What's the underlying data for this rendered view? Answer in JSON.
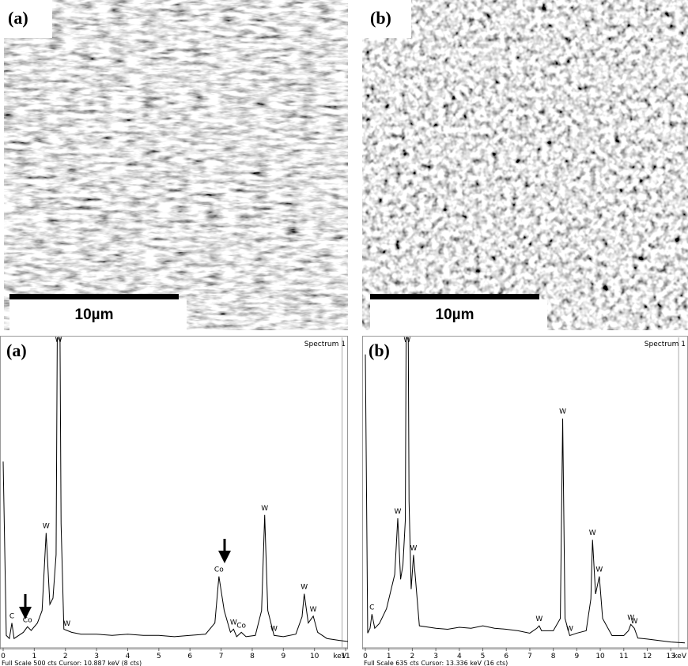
{
  "images": [
    {
      "label": "(a)",
      "scale_bar": "10µm"
    },
    {
      "label": "(b)",
      "scale_bar": "10µm"
    }
  ],
  "chart_data": [
    {
      "type": "line",
      "panel_label": "(a)",
      "title": "Spectrum 1",
      "x_label": "keV",
      "footer": "Full Scale 500 cts  Cursor: 10.887 keV (8 cts)",
      "cursor": 10.887,
      "color": "#000000",
      "xlim": [
        0,
        11.1
      ],
      "ylim": [
        0,
        500
      ],
      "xticks": [
        0,
        1,
        2,
        3,
        4,
        5,
        6,
        7,
        8,
        9,
        10,
        11
      ],
      "x": [
        0,
        0.1,
        0.2,
        0.28,
        0.35,
        0.5,
        0.65,
        0.78,
        0.9,
        1.1,
        1.25,
        1.38,
        1.5,
        1.6,
        1.7,
        1.78,
        1.86,
        1.95,
        2.05,
        2.2,
        2.5,
        3,
        3.5,
        4,
        4.5,
        5,
        5.5,
        6,
        6.5,
        6.8,
        6.93,
        7.1,
        7.3,
        7.4,
        7.5,
        7.65,
        7.8,
        8.1,
        8.3,
        8.4,
        8.5,
        8.7,
        9,
        9.4,
        9.6,
        9.67,
        9.8,
        9.96,
        10.1,
        10.4,
        10.8,
        11.1
      ],
      "values": [
        300,
        20,
        15,
        40,
        15,
        20,
        25,
        34,
        28,
        40,
        60,
        185,
        70,
        80,
        150,
        900,
        200,
        30,
        28,
        25,
        22,
        22,
        20,
        22,
        20,
        20,
        18,
        20,
        22,
        40,
        115,
        60,
        25,
        30,
        18,
        25,
        18,
        20,
        60,
        214,
        60,
        20,
        18,
        22,
        50,
        87,
        40,
        51,
        25,
        15,
        12,
        10
      ],
      "annotations": [
        {
          "text": "C",
          "x": 0.28
        },
        {
          "text": "Co",
          "x": 0.78
        },
        {
          "text": "W",
          "x": 1.38
        },
        {
          "text": "W",
          "x": 1.78
        },
        {
          "text": "W",
          "x": 2.05
        },
        {
          "text": "Co",
          "x": 6.93
        },
        {
          "text": "W",
          "x": 7.4
        },
        {
          "text": "Co",
          "x": 7.65
        },
        {
          "text": "W",
          "x": 8.4
        },
        {
          "text": "W",
          "x": 8.7
        },
        {
          "text": "W",
          "x": 9.67
        },
        {
          "text": "W",
          "x": 9.96
        }
      ]
    },
    {
      "type": "line",
      "panel_label": "(b)",
      "title": "Spectrum 1",
      "x_label": "keV",
      "footer": "Full Scale 635 cts  Cursor: 13.336 keV (16 cts)",
      "cursor": 13.336,
      "color": "#000000",
      "xlim": [
        0,
        13.6
      ],
      "ylim": [
        0,
        635
      ],
      "xticks": [
        0,
        1,
        2,
        3,
        4,
        5,
        6,
        7,
        8,
        9,
        10,
        11,
        12,
        13
      ],
      "x": [
        0,
        0.1,
        0.2,
        0.28,
        0.4,
        0.6,
        0.9,
        1.1,
        1.25,
        1.38,
        1.5,
        1.6,
        1.7,
        1.78,
        1.86,
        1.95,
        2.05,
        2.3,
        3,
        3.5,
        4,
        4.5,
        5,
        5.5,
        6,
        6.5,
        7,
        7.3,
        7.4,
        7.5,
        8,
        8.3,
        8.4,
        8.5,
        8.7,
        9,
        9.4,
        9.6,
        9.67,
        9.8,
        9.96,
        10.1,
        10.5,
        11,
        11.2,
        11.3,
        11.45,
        11.6,
        12,
        12.5,
        13,
        13.6
      ],
      "values": [
        600,
        30,
        40,
        69,
        40,
        50,
        80,
        120,
        150,
        265,
        140,
        170,
        260,
        1100,
        300,
        120,
        190,
        45,
        40,
        38,
        42,
        40,
        45,
        40,
        38,
        35,
        30,
        40,
        45,
        35,
        35,
        60,
        469,
        60,
        25,
        30,
        35,
        100,
        221,
        110,
        146,
        60,
        25,
        25,
        35,
        48,
        40,
        20,
        18,
        15,
        12,
        10
      ],
      "annotations": [
        {
          "text": "C",
          "x": 0.28
        },
        {
          "text": "W",
          "x": 1.38
        },
        {
          "text": "W",
          "x": 1.78
        },
        {
          "text": "W",
          "x": 2.05
        },
        {
          "text": "W",
          "x": 7.4
        },
        {
          "text": "W",
          "x": 8.4
        },
        {
          "text": "W",
          "x": 8.7
        },
        {
          "text": "W",
          "x": 9.67
        },
        {
          "text": "W",
          "x": 9.96
        },
        {
          "text": "W",
          "x": 11.3
        },
        {
          "text": "W",
          "x": 11.45
        }
      ]
    }
  ]
}
